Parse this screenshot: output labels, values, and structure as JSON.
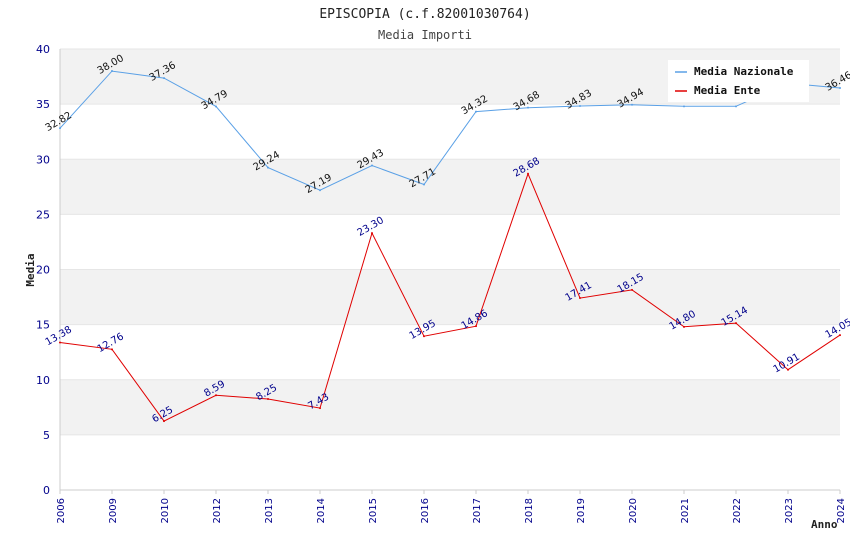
{
  "chart_data": {
    "type": "line",
    "title": "EPISCOPIA (c.f.82001030764)",
    "subtitle": "Media Importi",
    "xlabel": "Anno",
    "ylabel": "Media",
    "ylim": [
      0,
      40
    ],
    "yticks": [
      0,
      5,
      10,
      15,
      20,
      25,
      30,
      35,
      40
    ],
    "categories": [
      "2006",
      "2009",
      "2010",
      "2012",
      "2013",
      "2014",
      "2015",
      "2016",
      "2017",
      "2018",
      "2019",
      "2020",
      "2021",
      "2022",
      "2023",
      "2024"
    ],
    "series": [
      {
        "name": "Media Nazionale",
        "color": "#5aa0e6",
        "values": [
          32.82,
          38.0,
          37.36,
          34.79,
          29.24,
          27.19,
          29.43,
          27.71,
          34.32,
          34.68,
          34.83,
          34.94,
          34.8,
          34.8,
          36.9,
          36.46
        ],
        "labels": [
          "32.82",
          "38.00",
          "37.36",
          "34.79",
          "29.24",
          "27.19",
          "29.43",
          "27.71",
          "34.32",
          "34.68",
          "34.83",
          "34.94",
          "",
          "",
          "",
          "36.46"
        ]
      },
      {
        "name": "Media Ente",
        "color": "#e00000",
        "values": [
          13.38,
          12.76,
          6.25,
          8.59,
          8.25,
          7.43,
          23.3,
          13.95,
          14.86,
          28.68,
          17.41,
          18.15,
          14.8,
          15.14,
          10.91,
          14.05
        ],
        "labels": [
          "13.38",
          "12.76",
          "6.25",
          "8.59",
          "8.25",
          "7.43",
          "23.30",
          "13.95",
          "14.86",
          "28.68",
          "17.41",
          "18.15",
          "14.80",
          "15.14",
          "10.91",
          "14.05"
        ]
      }
    ],
    "legend": {
      "position": "top-right"
    },
    "grid": true
  }
}
